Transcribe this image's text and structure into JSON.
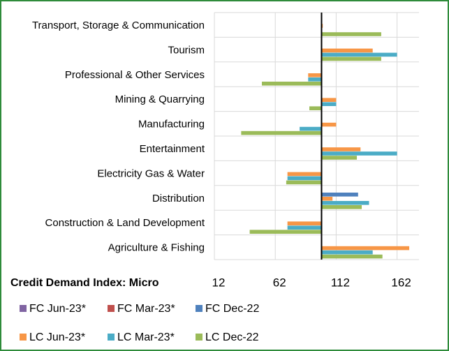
{
  "chart_data": {
    "type": "bar",
    "orientation": "horizontal",
    "x_label": "Credit Demand Index: Micro",
    "categories": [
      "Transport, Storage & Communication",
      "Tourism",
      "Professional & Other Services",
      "Mining & Quarrying",
      "Manufacturing",
      "Entertainment",
      "Electricity Gas & Water",
      "Distribution",
      "Construction & Land Development",
      "Agriculture & Fishing"
    ],
    "series": [
      {
        "name": "FC Jun-23*",
        "color": "#8064a2",
        "values": [
          null,
          null,
          null,
          null,
          null,
          null,
          null,
          null,
          null,
          null
        ]
      },
      {
        "name": "FC Mar-23*",
        "color": "#c0504d",
        "values": [
          null,
          null,
          null,
          null,
          null,
          null,
          null,
          null,
          null,
          null
        ]
      },
      {
        "name": "FC Dec-22",
        "color": "#4f81bd",
        "values": [
          null,
          null,
          null,
          null,
          null,
          null,
          null,
          130,
          null,
          null
        ]
      },
      {
        "name": "LC Jun-23*",
        "color": "#f79646",
        "values": [
          101,
          142,
          89,
          112,
          112,
          132,
          72,
          109,
          72,
          172
        ]
      },
      {
        "name": "LC Mar-23*",
        "color": "#4bacc6",
        "values": [
          null,
          162,
          89,
          112,
          82,
          162,
          72,
          139,
          72,
          142
        ]
      },
      {
        "name": "LC Dec-22",
        "color": "#9bbb59",
        "values": [
          149,
          149,
          51,
          90,
          34,
          129,
          71,
          133,
          41,
          150
        ]
      }
    ],
    "xlim": [
      12,
      180
    ],
    "xticks": [
      12,
      62,
      112,
      162
    ],
    "baseline": 100,
    "grid": true
  }
}
